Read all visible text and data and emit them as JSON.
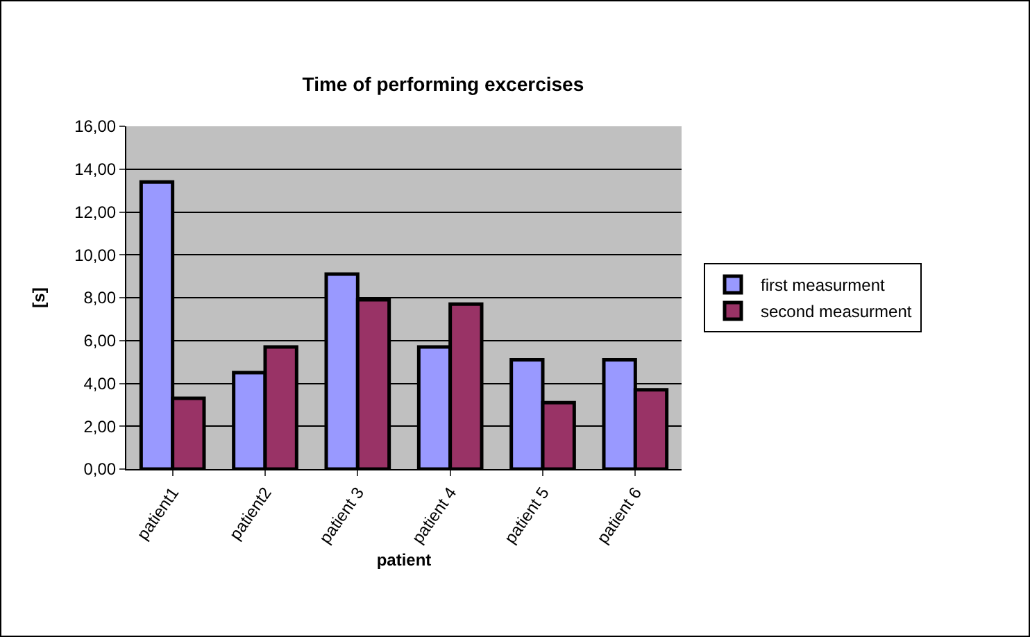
{
  "chart_data": {
    "type": "bar",
    "title": "Time of performing excercises",
    "xlabel": "patient",
    "ylabel": "[s]",
    "categories": [
      "patient1",
      "patient2",
      "patient 3",
      "patient 4",
      "patient 5",
      "patient 6"
    ],
    "series": [
      {
        "name": "first measurment",
        "color": "#9999ff",
        "values": [
          13.4,
          4.5,
          9.1,
          5.7,
          5.1,
          5.1
        ]
      },
      {
        "name": "second measurment",
        "color": "#993366",
        "values": [
          3.3,
          5.7,
          7.9,
          7.7,
          3.1,
          3.7
        ]
      }
    ],
    "ylim": [
      0,
      16
    ],
    "yticks": [
      {
        "value": 0,
        "label": "0,00"
      },
      {
        "value": 2,
        "label": "2,00"
      },
      {
        "value": 4,
        "label": "4,00"
      },
      {
        "value": 6,
        "label": "6,00"
      },
      {
        "value": 8,
        "label": "8,00"
      },
      {
        "value": 10,
        "label": "10,00"
      },
      {
        "value": 12,
        "label": "12,00"
      },
      {
        "value": 14,
        "label": "14,00"
      },
      {
        "value": 16,
        "label": "16,00"
      }
    ],
    "grid": "y",
    "legend": "right"
  }
}
